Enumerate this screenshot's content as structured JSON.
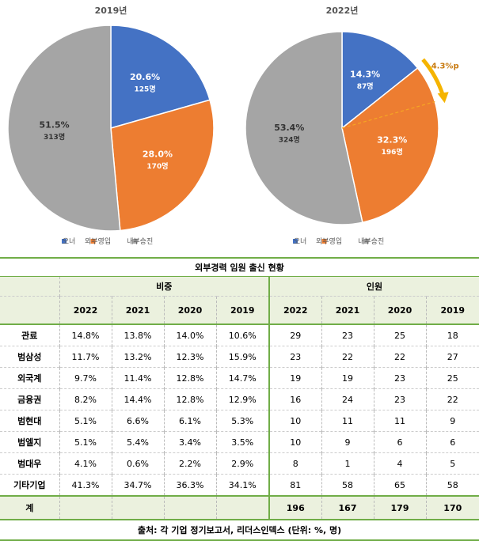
{
  "chart_data": [
    {
      "type": "pie",
      "title": "2019년",
      "categories": [
        "오너",
        "외부영입",
        "내부승진"
      ],
      "values": [
        20.6,
        28.0,
        51.5
      ],
      "value_labels": [
        "20.6%",
        "28.0%",
        "51.5%"
      ],
      "count_labels": [
        "125명",
        "170명",
        "313명"
      ],
      "colors": [
        "#4472c4",
        "#ed7d31",
        "#a5a5a5"
      ]
    },
    {
      "type": "pie",
      "title": "2022년",
      "categories": [
        "오너",
        "외부영입",
        "내부승진"
      ],
      "values": [
        14.3,
        32.3,
        53.4
      ],
      "value_labels": [
        "14.3%",
        "32.3%",
        "53.4%"
      ],
      "count_labels": [
        "87명",
        "196명",
        "324명"
      ],
      "colors": [
        "#4472c4",
        "#ed7d31",
        "#a5a5a5"
      ],
      "annotation": "4.3%p"
    }
  ],
  "table": {
    "title": "외부경력 임원 출신 현황",
    "groups": [
      "비중",
      "인원"
    ],
    "years": [
      "2022",
      "2021",
      "2020",
      "2019"
    ],
    "rows": [
      {
        "label": "관료",
        "share": [
          "14.8%",
          "13.8%",
          "14.0%",
          "10.6%"
        ],
        "count": [
          "29",
          "23",
          "25",
          "18"
        ]
      },
      {
        "label": "범삼성",
        "share": [
          "11.7%",
          "13.2%",
          "12.3%",
          "15.9%"
        ],
        "count": [
          "23",
          "22",
          "22",
          "27"
        ]
      },
      {
        "label": "외국계",
        "share": [
          "9.7%",
          "11.4%",
          "12.8%",
          "14.7%"
        ],
        "count": [
          "19",
          "19",
          "23",
          "25"
        ]
      },
      {
        "label": "금융권",
        "share": [
          "8.2%",
          "14.4%",
          "12.8%",
          "12.9%"
        ],
        "count": [
          "16",
          "24",
          "23",
          "22"
        ]
      },
      {
        "label": "범현대",
        "share": [
          "5.1%",
          "6.6%",
          "6.1%",
          "5.3%"
        ],
        "count": [
          "10",
          "11",
          "11",
          "9"
        ]
      },
      {
        "label": "범엘지",
        "share": [
          "5.1%",
          "5.4%",
          "3.4%",
          "3.5%"
        ],
        "count": [
          "10",
          "9",
          "6",
          "6"
        ]
      },
      {
        "label": "범대우",
        "share": [
          "4.1%",
          "0.6%",
          "2.2%",
          "2.9%"
        ],
        "count": [
          "8",
          "1",
          "4",
          "5"
        ]
      },
      {
        "label": "기타기업",
        "share": [
          "41.3%",
          "34.7%",
          "36.3%",
          "34.1%"
        ],
        "count": [
          "81",
          "58",
          "65",
          "58"
        ]
      }
    ],
    "total": {
      "label": "계",
      "count": [
        "196",
        "167",
        "179",
        "170"
      ]
    },
    "source": "출처: 각 기업 정기보고서, 리더스인덱스 (단위: %, 명)"
  }
}
